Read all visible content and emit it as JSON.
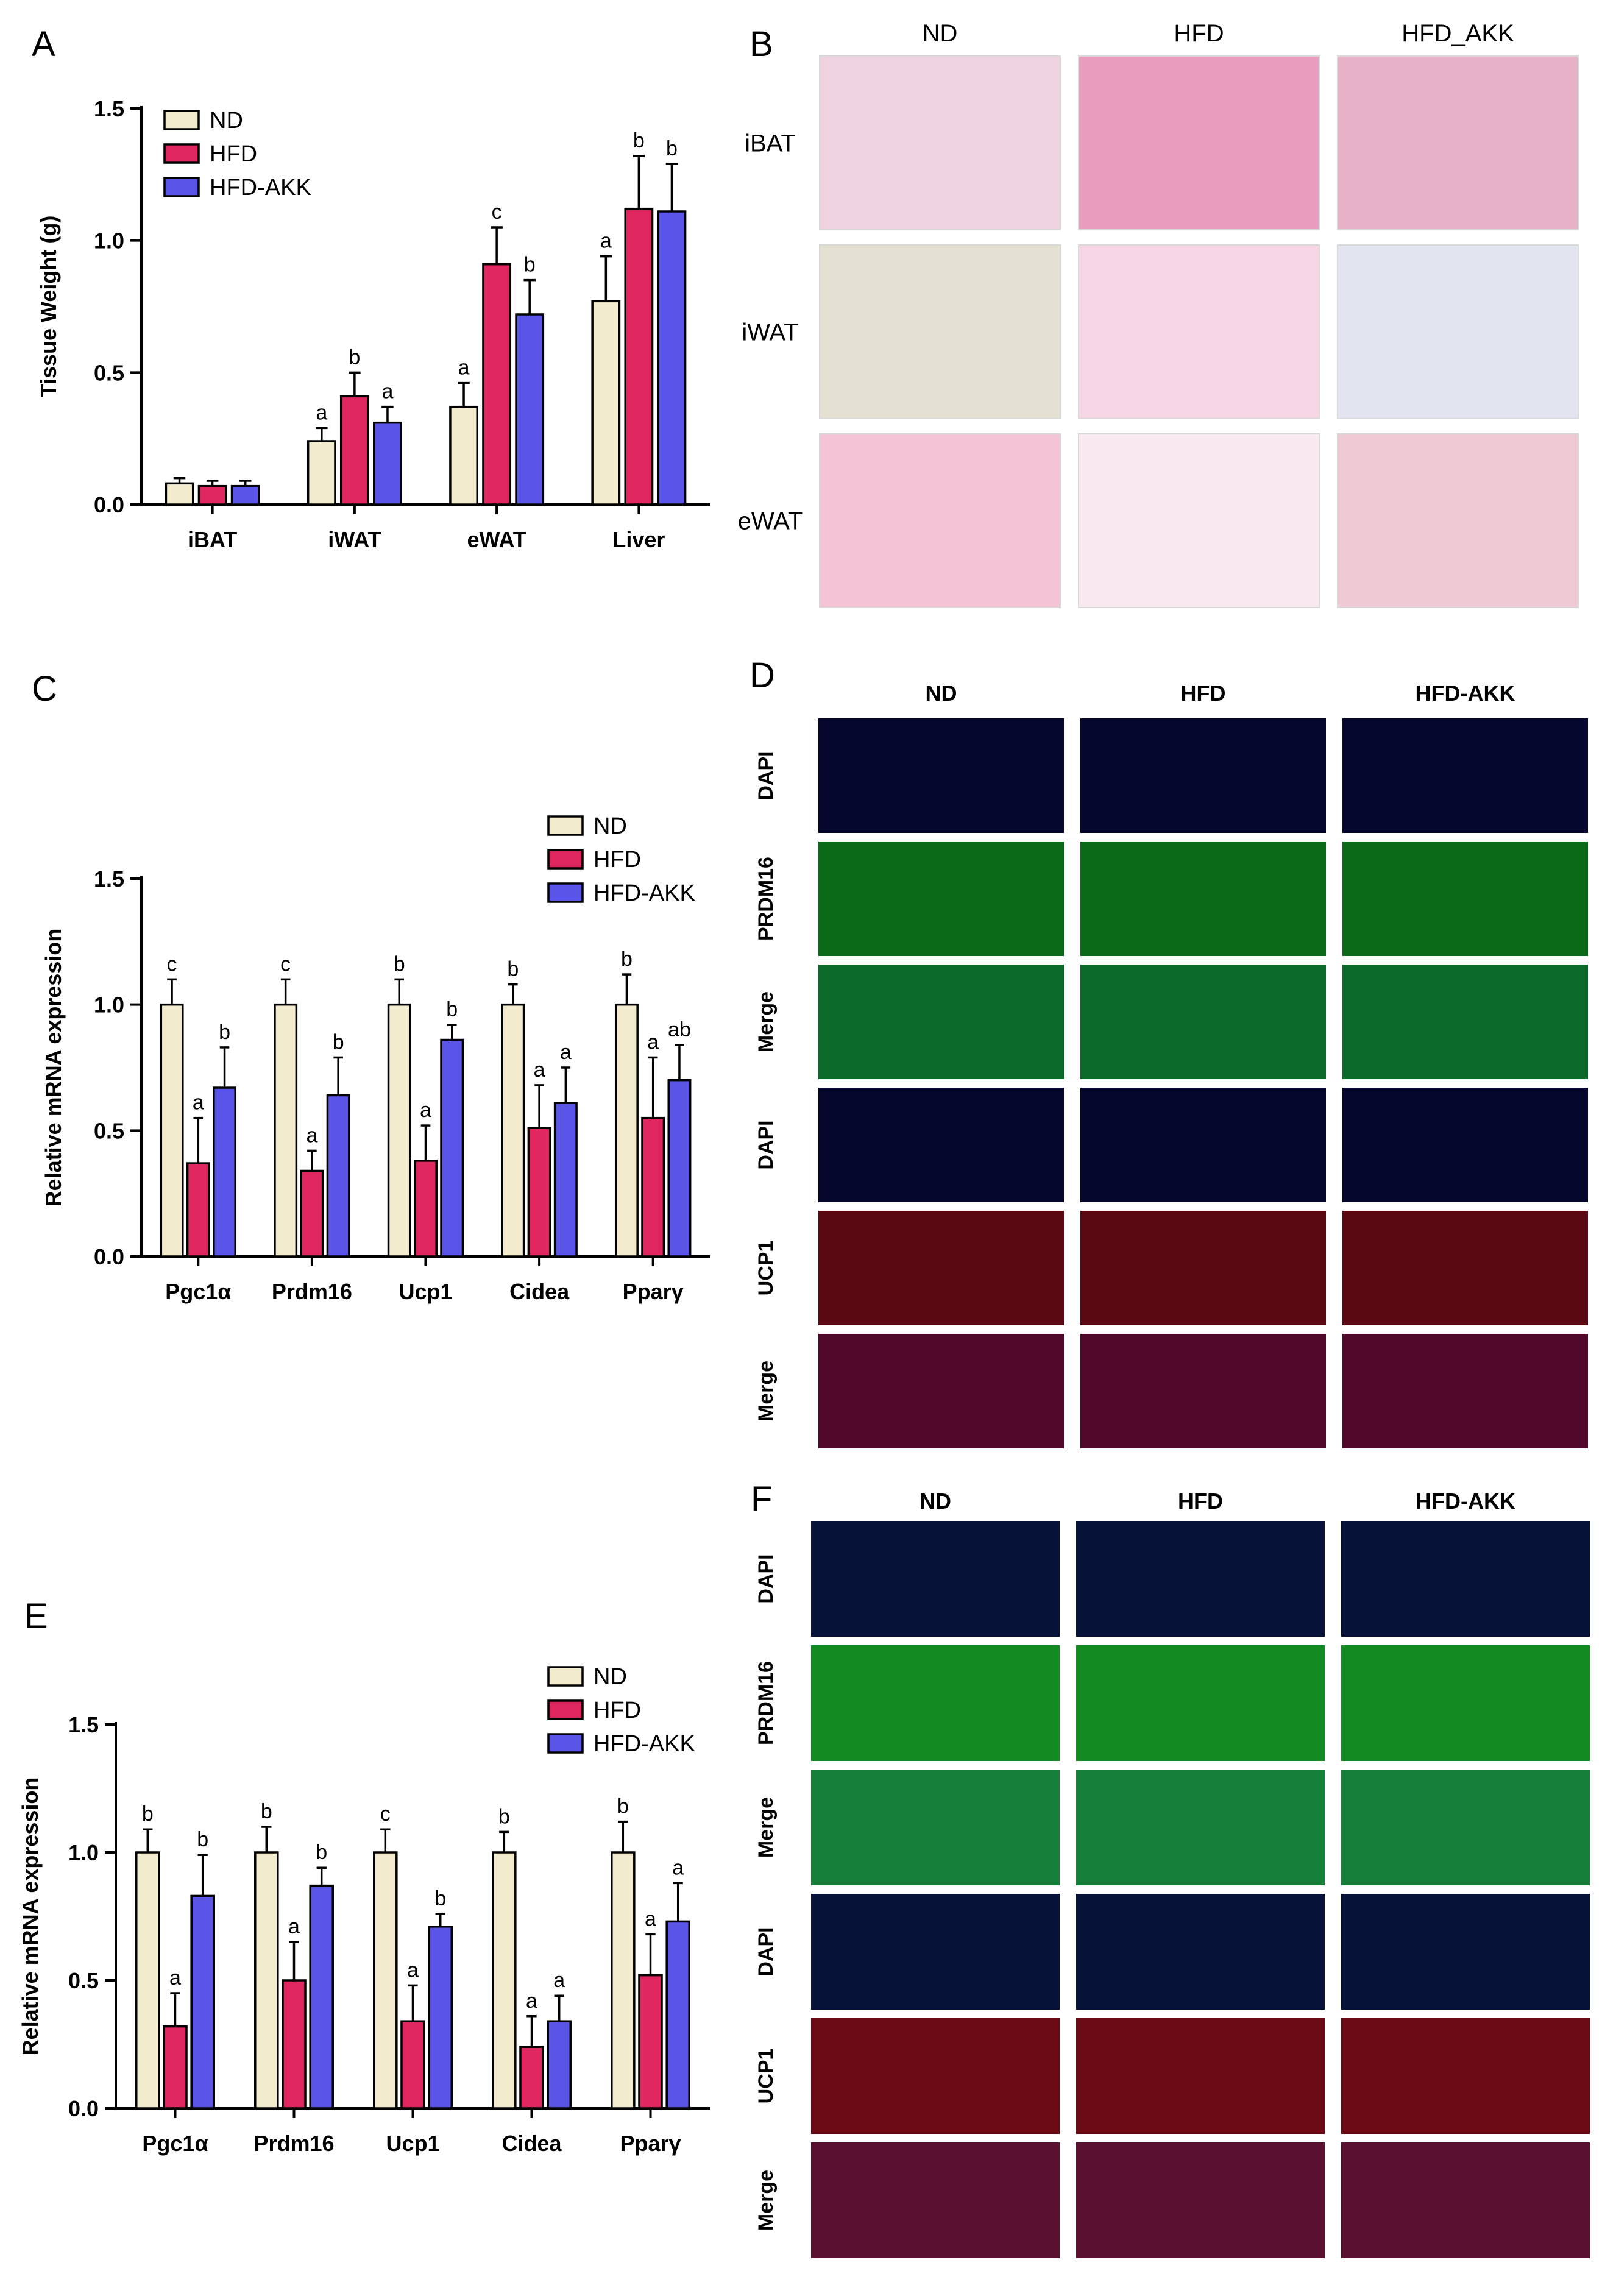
{
  "panels": {
    "A": {
      "letter": "A"
    },
    "B": {
      "letter": "B",
      "columns": [
        "ND",
        "HFD",
        "HFD_AKK"
      ],
      "rows": [
        "iBAT",
        "iWAT",
        "eWAT"
      ],
      "tile_colors": [
        [
          "#efd2df",
          "#ea9cbf",
          "#e7b2c8"
        ],
        [
          "#e4e0d2",
          "#f7d7e5",
          "#e2e4ef"
        ],
        [
          "#f4c4d6",
          "#f8e9f0",
          "#efcad5"
        ]
      ]
    },
    "C": {
      "letter": "C"
    },
    "D": {
      "letter": "D",
      "columns": [
        "ND",
        "HFD",
        "HFD-AKK"
      ],
      "rows": [
        "DAPI",
        "PRDM16",
        "Merge",
        "DAPI",
        "UCP1",
        "Merge"
      ],
      "row_colors": [
        "#06072e",
        "#0b6a18",
        "#0b6a2a",
        "#05062c",
        "#5a0812",
        "#52082a"
      ]
    },
    "E": {
      "letter": "E"
    },
    "F": {
      "letter": "F",
      "columns": [
        "ND",
        "HFD",
        "HFD-AKK"
      ],
      "rows": [
        "DAPI",
        "PRDM16",
        "Merge",
        "DAPI",
        "UCP1",
        "Merge"
      ],
      "row_colors": [
        "#071238",
        "#138a22",
        "#14803a",
        "#071238",
        "#6a0a14",
        "#5a1030"
      ]
    }
  },
  "chart_data": [
    {
      "panel": "A",
      "type": "bar",
      "ylabel": "Tissue Weight (g)",
      "ylim": [
        0,
        1.5
      ],
      "yticks": [
        0.0,
        0.5,
        1.0,
        1.5
      ],
      "ytick_labels": [
        "0.0",
        "0.5",
        "1.0",
        "1.5"
      ],
      "categories": [
        "iBAT",
        "iWAT",
        "eWAT",
        "Liver"
      ],
      "legend_position": "top-left",
      "series": [
        {
          "name": "ND",
          "color": "#f3ebcd",
          "values": [
            0.08,
            0.24,
            0.37,
            0.77
          ],
          "errors": [
            0.02,
            0.05,
            0.09,
            0.17
          ],
          "letters": [
            "",
            "a",
            "a",
            "a"
          ]
        },
        {
          "name": "HFD",
          "color": "#e0265f",
          "values": [
            0.07,
            0.41,
            0.91,
            1.12
          ],
          "errors": [
            0.02,
            0.09,
            0.14,
            0.2
          ],
          "letters": [
            "",
            "b",
            "c",
            "b"
          ]
        },
        {
          "name": "HFD-AKK",
          "color": "#5a55e6",
          "values": [
            0.07,
            0.31,
            0.72,
            1.11
          ],
          "errors": [
            0.02,
            0.06,
            0.13,
            0.18
          ],
          "letters": [
            "",
            "a",
            "b",
            "b"
          ]
        }
      ]
    },
    {
      "panel": "C",
      "type": "bar",
      "ylabel": "Relative mRNA expression",
      "ylim": [
        0,
        1.5
      ],
      "yticks": [
        0.0,
        0.5,
        1.0,
        1.5
      ],
      "ytick_labels": [
        "0.0",
        "0.5",
        "1.0",
        "1.5"
      ],
      "categories": [
        "Pgc1α",
        "Prdm16",
        "Ucp1",
        "Cidea",
        "Pparγ"
      ],
      "legend_position": "top-right",
      "series": [
        {
          "name": "ND",
          "color": "#f3ebcd",
          "values": [
            1.0,
            1.0,
            1.0,
            1.0,
            1.0
          ],
          "errors": [
            0.1,
            0.1,
            0.1,
            0.08,
            0.12
          ],
          "letters": [
            "c",
            "c",
            "b",
            "b",
            "b"
          ]
        },
        {
          "name": "HFD",
          "color": "#e0265f",
          "values": [
            0.37,
            0.34,
            0.38,
            0.51,
            0.55
          ],
          "errors": [
            0.18,
            0.08,
            0.14,
            0.17,
            0.24
          ],
          "letters": [
            "a",
            "a",
            "a",
            "a",
            "a"
          ]
        },
        {
          "name": "HFD-AKK",
          "color": "#5a55e6",
          "values": [
            0.67,
            0.64,
            0.86,
            0.61,
            0.7
          ],
          "errors": [
            0.16,
            0.15,
            0.06,
            0.14,
            0.14
          ],
          "letters": [
            "b",
            "b",
            "b",
            "a",
            "ab"
          ]
        }
      ]
    },
    {
      "panel": "E",
      "type": "bar",
      "ylabel": "Relative mRNA expression",
      "ylim": [
        0,
        1.5
      ],
      "yticks": [
        0.0,
        0.5,
        1.0,
        1.5
      ],
      "ytick_labels": [
        "0.0",
        "0.5",
        "1.0",
        "1.5"
      ],
      "categories": [
        "Pgc1α",
        "Prdm16",
        "Ucp1",
        "Cidea",
        "Pparγ"
      ],
      "legend_position": "top-right",
      "series": [
        {
          "name": "ND",
          "color": "#f3ebcd",
          "values": [
            1.0,
            1.0,
            1.0,
            1.0,
            1.0
          ],
          "errors": [
            0.09,
            0.1,
            0.09,
            0.08,
            0.12
          ],
          "letters": [
            "b",
            "b",
            "c",
            "b",
            "b"
          ]
        },
        {
          "name": "HFD",
          "color": "#e0265f",
          "values": [
            0.32,
            0.5,
            0.34,
            0.24,
            0.52
          ],
          "errors": [
            0.13,
            0.15,
            0.14,
            0.12,
            0.16
          ],
          "letters": [
            "a",
            "a",
            "a",
            "a",
            "a"
          ]
        },
        {
          "name": "HFD-AKK",
          "color": "#5a55e6",
          "values": [
            0.83,
            0.87,
            0.71,
            0.34,
            0.73
          ],
          "errors": [
            0.16,
            0.07,
            0.05,
            0.1,
            0.15
          ],
          "letters": [
            "b",
            "b",
            "b",
            "a",
            "a"
          ]
        }
      ]
    }
  ]
}
